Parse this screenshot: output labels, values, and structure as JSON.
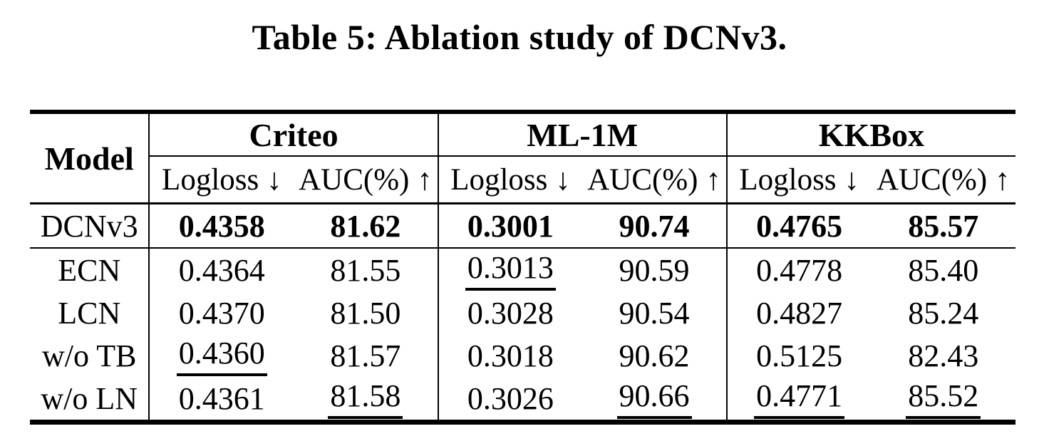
{
  "title": "Table 5: Ablation study of DCNv3.",
  "table": {
    "model_header": "Model",
    "groups": [
      {
        "name": "Criteo",
        "metrics": [
          "Logloss ↓",
          "AUC(%) ↑"
        ]
      },
      {
        "name": "ML-1M",
        "metrics": [
          "Logloss ↓",
          "AUC(%) ↑"
        ]
      },
      {
        "name": "KKBox",
        "metrics": [
          "Logloss ↓",
          "AUC(%) ↑"
        ]
      }
    ],
    "rows": [
      {
        "model": "DCNv3",
        "values": [
          "0.4358",
          "81.62",
          "0.3001",
          "90.74",
          "0.4765",
          "85.57"
        ]
      },
      {
        "model": "ECN",
        "values": [
          "0.4364",
          "81.55",
          "0.3013",
          "90.59",
          "0.4778",
          "85.40"
        ]
      },
      {
        "model": "LCN",
        "values": [
          "0.4370",
          "81.50",
          "0.3028",
          "90.54",
          "0.4827",
          "85.24"
        ]
      },
      {
        "model": "w/o TB",
        "values": [
          "0.4360",
          "81.57",
          "0.3018",
          "90.62",
          "0.5125",
          "82.43"
        ]
      },
      {
        "model": "w/o LN",
        "values": [
          "0.4361",
          "81.58",
          "0.3026",
          "90.66",
          "0.4771",
          "85.52"
        ]
      }
    ]
  }
}
